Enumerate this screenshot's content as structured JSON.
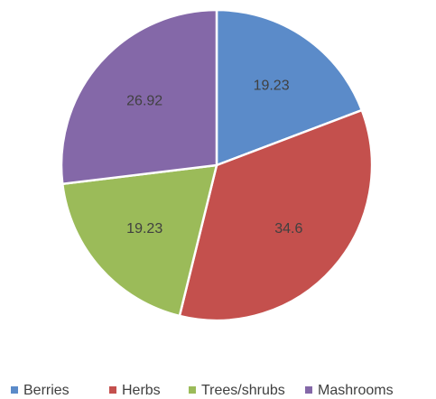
{
  "chart_data": {
    "type": "pie",
    "categories": [
      "Berries",
      "Herbs",
      "Trees/shrubs",
      "Mashrooms"
    ],
    "values": [
      19.23,
      34.6,
      19.23,
      26.92
    ],
    "colors": [
      "#5b8bc9",
      "#c4504d",
      "#9bbb59",
      "#8468a8"
    ],
    "legend": "bottom"
  }
}
